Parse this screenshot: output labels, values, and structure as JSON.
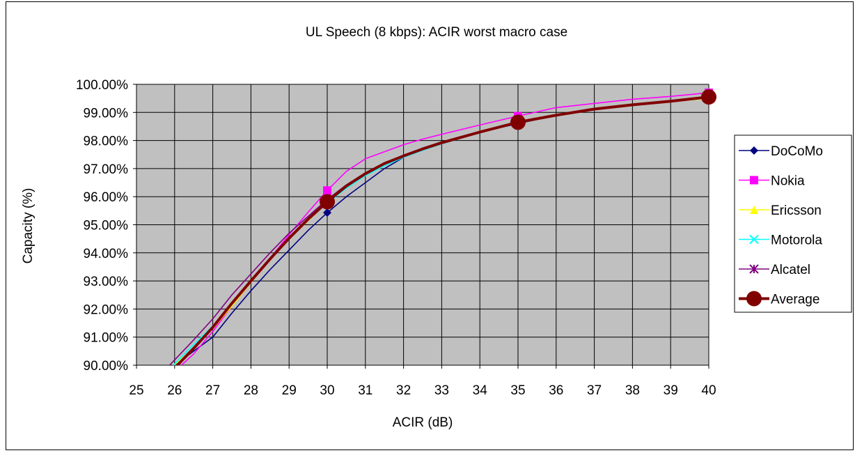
{
  "chart_data": {
    "type": "line",
    "title": "UL Speech (8 kbps): ACIR worst macro case",
    "xlabel": "ACIR (dB)",
    "ylabel": "Capacity (%)",
    "xlim": [
      25,
      40
    ],
    "ylim": [
      0.9,
      1.0
    ],
    "x_ticks": [
      "25",
      "26",
      "27",
      "28",
      "29",
      "30",
      "31",
      "32",
      "33",
      "34",
      "35",
      "36",
      "37",
      "38",
      "39",
      "40"
    ],
    "y_ticks": [
      "90.00%",
      "91.00%",
      "92.00%",
      "93.00%",
      "94.00%",
      "95.00%",
      "96.00%",
      "97.00%",
      "98.00%",
      "99.00%",
      "100.00%"
    ],
    "grid": true,
    "legend_position": "right",
    "plot_background": "#c0c0c0",
    "series": [
      {
        "name": "DoCoMo",
        "color": "#000080",
        "marker": "diamond",
        "marker_x": [
          30,
          35,
          40
        ],
        "x": [
          25.9,
          26.6,
          27.0,
          27.5,
          28.0,
          28.5,
          29.0,
          29.5,
          30.0,
          30.5,
          31.0,
          31.5,
          32.0,
          32.5,
          33.0,
          34.0,
          35.0,
          36.0,
          37.0,
          38.0,
          39.0,
          40.0
        ],
        "y": [
          0.899,
          0.906,
          0.91,
          0.9185,
          0.9265,
          0.934,
          0.941,
          0.948,
          0.9543,
          0.96,
          0.965,
          0.97,
          0.974,
          0.9773,
          0.9795,
          0.983,
          0.986,
          0.989,
          0.9912,
          0.9927,
          0.994,
          0.9955
        ]
      },
      {
        "name": "Nokia",
        "color": "#ff00ff",
        "marker": "square",
        "marker_x": [
          30,
          35,
          40
        ],
        "x": [
          26.1,
          26.5,
          27.0,
          27.5,
          28.0,
          28.5,
          29.0,
          29.5,
          30.0,
          30.5,
          31.0,
          31.5,
          32.0,
          32.5,
          33.0,
          34.0,
          35.0,
          36.0,
          37.0,
          38.0,
          39.0,
          40.0
        ],
        "y": [
          0.899,
          0.904,
          0.912,
          0.921,
          0.9295,
          0.938,
          0.9465,
          0.9545,
          0.9622,
          0.969,
          0.9735,
          0.976,
          0.9785,
          0.9805,
          0.9822,
          0.9855,
          0.9887,
          0.9917,
          0.9932,
          0.9947,
          0.9957,
          0.997
        ]
      },
      {
        "name": "Ericsson",
        "color": "#ffff00",
        "marker": "triangle",
        "marker_x": [
          30,
          35,
          40
        ],
        "x": [
          25.9,
          26.5,
          27.0,
          27.5,
          28.0,
          28.5,
          29.0,
          29.5,
          30.0,
          30.5,
          31.0,
          31.5,
          32.0,
          32.5,
          33.0,
          34.0,
          35.0,
          36.0,
          37.0,
          38.0,
          39.0,
          40.0
        ],
        "y": [
          0.899,
          0.906,
          0.913,
          0.921,
          0.9295,
          0.9375,
          0.945,
          0.9515,
          0.958,
          0.9638,
          0.968,
          0.9715,
          0.9742,
          0.9768,
          0.979,
          0.983,
          0.9865,
          0.989,
          0.991,
          0.9925,
          0.9938,
          0.995
        ]
      },
      {
        "name": "Motorola",
        "color": "#00ffff",
        "marker": "x",
        "marker_x": [
          30,
          35,
          40
        ],
        "x": [
          25.9,
          26.4,
          27.0,
          27.5,
          28.0,
          28.5,
          29.0,
          29.5,
          30.0,
          30.5,
          31.0,
          31.5,
          32.0,
          32.5,
          33.0,
          34.0,
          35.0,
          36.0,
          37.0,
          38.0,
          39.0,
          40.0
        ],
        "y": [
          0.899,
          0.906,
          0.914,
          0.9215,
          0.93,
          0.938,
          0.9455,
          0.952,
          0.9578,
          0.963,
          0.9675,
          0.971,
          0.974,
          0.9765,
          0.9788,
          0.9828,
          0.9862,
          0.9888,
          0.991,
          0.9925,
          0.9938,
          0.9952
        ]
      },
      {
        "name": "Alcatel",
        "color": "#800080",
        "marker": "star",
        "marker_x": [
          30,
          35,
          40
        ],
        "x": [
          25.8,
          26.5,
          27.0,
          27.5,
          28.0,
          28.5,
          29.0,
          29.5,
          30.0,
          30.5,
          31.0,
          31.5,
          32.0,
          32.5,
          33.0,
          34.0,
          35.0,
          36.0,
          37.0,
          38.0,
          39.0,
          40.0
        ],
        "y": [
          0.899,
          0.909,
          0.9165,
          0.925,
          0.9325,
          0.94,
          0.947,
          0.953,
          0.959,
          0.9642,
          0.9685,
          0.972,
          0.9748,
          0.9772,
          0.9793,
          0.9832,
          0.9865,
          0.9892,
          0.9913,
          0.9928,
          0.994,
          0.9955
        ]
      },
      {
        "name": "Average",
        "color": "#800000",
        "marker": "circle",
        "marker_x": [
          30,
          35,
          40
        ],
        "thick": true,
        "x": [
          26.0,
          26.5,
          27.0,
          27.5,
          28.0,
          28.5,
          29.0,
          29.5,
          30.0,
          30.5,
          31.0,
          31.5,
          32.0,
          32.5,
          33.0,
          34.0,
          35.0,
          36.0,
          37.0,
          38.0,
          39.0,
          40.0
        ],
        "y": [
          0.899,
          0.906,
          0.9135,
          0.922,
          0.93,
          0.9378,
          0.9452,
          0.952,
          0.9582,
          0.9638,
          0.9682,
          0.9718,
          0.9745,
          0.977,
          0.9792,
          0.983,
          0.9865,
          0.989,
          0.9912,
          0.9927,
          0.994,
          0.9955
        ]
      }
    ]
  }
}
